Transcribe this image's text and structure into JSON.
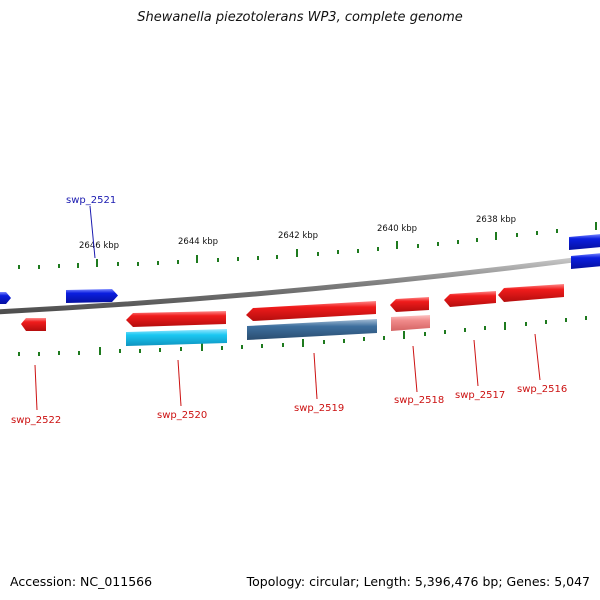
{
  "title": "Shewanella piezotolerans WP3, complete genome",
  "footer": {
    "accession": "Accession: NC_011566",
    "summary": "Topology: circular; Length: 5,396,476 bp; Genes: 5,047"
  },
  "ruler_labels": [
    "2646 kbp",
    "2644 kbp",
    "2642 kbp",
    "2640 kbp",
    "2638 kbp"
  ],
  "gene_labels": [
    {
      "id": "swp_2521",
      "strand": "plus"
    },
    {
      "id": "swp_2522",
      "strand": "minus"
    },
    {
      "id": "swp_2520",
      "strand": "minus"
    },
    {
      "id": "swp_2519",
      "strand": "minus"
    },
    {
      "id": "swp_2518",
      "strand": "minus"
    },
    {
      "id": "swp_2517",
      "strand": "minus"
    },
    {
      "id": "swp_2516",
      "strand": "minus"
    }
  ],
  "colors": {
    "plus_strand_gene": "#0b1fe0",
    "minus_strand_gene": "#ee1c1c",
    "cds_light_blue": "#1bc8f2",
    "cds_steel_blue": "#3e6f9e",
    "cds_pink": "#f08a8a",
    "tick": "#1e7a1e",
    "backbone": "#8a8a8a",
    "label_plus": "#1a1ab0",
    "label_minus": "#cc1111"
  }
}
